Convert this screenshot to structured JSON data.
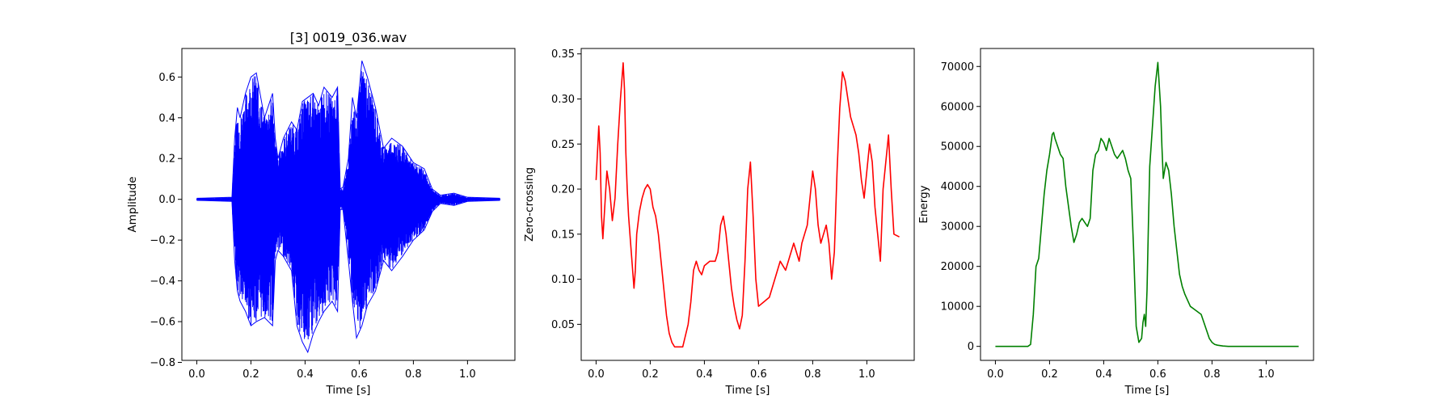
{
  "chart_data": [
    {
      "type": "line",
      "title": "[3] 0019_036.wav",
      "xlabel": "Time [s]",
      "ylabel": "Amplitude",
      "color": "#0000ff",
      "xlim": [
        -0.055,
        1.175
      ],
      "ylim": [
        -0.79,
        0.74
      ],
      "xticks": [
        0.0,
        0.2,
        0.4,
        0.6,
        0.8,
        1.0
      ],
      "xtick_labels": [
        "0.0",
        "0.2",
        "0.4",
        "0.6",
        "0.8",
        "1.0"
      ],
      "yticks": [
        -0.8,
        -0.6,
        -0.4,
        -0.2,
        0.0,
        0.2,
        0.4,
        0.6
      ],
      "ytick_labels": [
        "−0.8",
        "−0.6",
        "−0.4",
        "−0.2",
        "0.0",
        "0.2",
        "0.4",
        "0.6"
      ],
      "waveform_envelope": {
        "x": [
          0.0,
          0.13,
          0.14,
          0.15,
          0.16,
          0.18,
          0.2,
          0.22,
          0.25,
          0.28,
          0.29,
          0.3,
          0.32,
          0.35,
          0.37,
          0.39,
          0.41,
          0.43,
          0.45,
          0.47,
          0.5,
          0.52,
          0.53,
          0.54,
          0.56,
          0.575,
          0.59,
          0.61,
          0.63,
          0.66,
          0.69,
          0.72,
          0.76,
          0.8,
          0.84,
          0.87,
          0.9,
          0.95,
          1.0,
          1.12
        ],
        "upper": [
          0.005,
          0.01,
          0.3,
          0.45,
          0.4,
          0.52,
          0.6,
          0.62,
          0.4,
          0.52,
          0.3,
          0.2,
          0.3,
          0.38,
          0.34,
          0.48,
          0.5,
          0.52,
          0.46,
          0.55,
          0.5,
          0.55,
          0.05,
          0.06,
          0.2,
          0.5,
          0.4,
          0.68,
          0.6,
          0.45,
          0.25,
          0.3,
          0.26,
          0.18,
          0.15,
          0.05,
          0.02,
          0.03,
          0.01,
          0.005
        ],
        "lower": [
          -0.005,
          -0.01,
          -0.3,
          -0.45,
          -0.5,
          -0.55,
          -0.62,
          -0.6,
          -0.58,
          -0.62,
          -0.3,
          -0.25,
          -0.28,
          -0.35,
          -0.62,
          -0.7,
          -0.75,
          -0.66,
          -0.6,
          -0.55,
          -0.5,
          -0.55,
          -0.05,
          -0.05,
          -0.3,
          -0.5,
          -0.68,
          -0.62,
          -0.52,
          -0.45,
          -0.3,
          -0.35,
          -0.28,
          -0.2,
          -0.15,
          -0.06,
          -0.02,
          -0.03,
          -0.01,
          -0.005
        ]
      }
    },
    {
      "type": "line",
      "title": "",
      "xlabel": "Time [s]",
      "ylabel": "Zero-crossing",
      "color": "#ff0000",
      "xlim": [
        -0.055,
        1.175
      ],
      "ylim": [
        0.01,
        0.356
      ],
      "xticks": [
        0.0,
        0.2,
        0.4,
        0.6,
        0.8,
        1.0
      ],
      "xtick_labels": [
        "0.0",
        "0.2",
        "0.4",
        "0.6",
        "0.8",
        "1.0"
      ],
      "yticks": [
        0.05,
        0.1,
        0.15,
        0.2,
        0.25,
        0.3,
        0.35
      ],
      "ytick_labels": [
        "0.05",
        "0.10",
        "0.15",
        "0.20",
        "0.25",
        "0.30",
        "0.35"
      ],
      "series": [
        {
          "x": [
            0.0,
            0.01,
            0.015,
            0.02,
            0.025,
            0.03,
            0.04,
            0.05,
            0.06,
            0.07,
            0.08,
            0.09,
            0.1,
            0.105,
            0.11,
            0.115,
            0.12,
            0.13,
            0.14,
            0.145,
            0.15,
            0.16,
            0.17,
            0.18,
            0.19,
            0.2,
            0.21,
            0.22,
            0.23,
            0.24,
            0.25,
            0.26,
            0.27,
            0.28,
            0.29,
            0.3,
            0.32,
            0.34,
            0.35,
            0.36,
            0.37,
            0.38,
            0.39,
            0.4,
            0.42,
            0.44,
            0.45,
            0.46,
            0.47,
            0.48,
            0.49,
            0.5,
            0.51,
            0.52,
            0.53,
            0.54,
            0.55,
            0.56,
            0.57,
            0.58,
            0.59,
            0.6,
            0.62,
            0.64,
            0.66,
            0.68,
            0.7,
            0.72,
            0.73,
            0.74,
            0.75,
            0.76,
            0.77,
            0.78,
            0.79,
            0.8,
            0.81,
            0.82,
            0.83,
            0.84,
            0.85,
            0.86,
            0.87,
            0.88,
            0.89,
            0.9,
            0.91,
            0.92,
            0.93,
            0.94,
            0.95,
            0.96,
            0.97,
            0.98,
            0.99,
            1.0,
            1.01,
            1.02,
            1.03,
            1.04,
            1.05,
            1.06,
            1.07,
            1.08,
            1.09,
            1.1,
            1.12
          ],
          "y": [
            0.21,
            0.27,
            0.24,
            0.17,
            0.145,
            0.17,
            0.22,
            0.2,
            0.165,
            0.19,
            0.25,
            0.3,
            0.34,
            0.31,
            0.24,
            0.2,
            0.17,
            0.13,
            0.09,
            0.11,
            0.15,
            0.175,
            0.19,
            0.2,
            0.205,
            0.2,
            0.18,
            0.17,
            0.15,
            0.12,
            0.09,
            0.06,
            0.04,
            0.03,
            0.025,
            0.025,
            0.025,
            0.05,
            0.075,
            0.11,
            0.12,
            0.11,
            0.105,
            0.115,
            0.12,
            0.12,
            0.13,
            0.16,
            0.17,
            0.15,
            0.12,
            0.09,
            0.07,
            0.055,
            0.045,
            0.06,
            0.12,
            0.2,
            0.23,
            0.17,
            0.1,
            0.07,
            0.075,
            0.08,
            0.1,
            0.12,
            0.11,
            0.13,
            0.14,
            0.13,
            0.12,
            0.14,
            0.15,
            0.16,
            0.19,
            0.22,
            0.2,
            0.16,
            0.14,
            0.15,
            0.16,
            0.14,
            0.1,
            0.13,
            0.22,
            0.29,
            0.33,
            0.32,
            0.3,
            0.28,
            0.27,
            0.26,
            0.24,
            0.21,
            0.19,
            0.22,
            0.25,
            0.23,
            0.18,
            0.15,
            0.12,
            0.2,
            0.23,
            0.26,
            0.2,
            0.15,
            0.147
          ]
        }
      ]
    },
    {
      "type": "line",
      "title": "",
      "xlabel": "Time [s]",
      "ylabel": "Energy",
      "color": "#008000",
      "xlim": [
        -0.055,
        1.175
      ],
      "ylim": [
        -3500,
        74500
      ],
      "xticks": [
        0.0,
        0.2,
        0.4,
        0.6,
        0.8,
        1.0
      ],
      "xtick_labels": [
        "0.0",
        "0.2",
        "0.4",
        "0.6",
        "0.8",
        "1.0"
      ],
      "yticks": [
        0,
        10000,
        20000,
        30000,
        40000,
        50000,
        60000,
        70000
      ],
      "ytick_labels": [
        "0",
        "10000",
        "20000",
        "30000",
        "40000",
        "50000",
        "60000",
        "70000"
      ],
      "series": [
        {
          "x": [
            0.0,
            0.12,
            0.13,
            0.14,
            0.15,
            0.16,
            0.17,
            0.18,
            0.19,
            0.2,
            0.21,
            0.215,
            0.22,
            0.23,
            0.24,
            0.25,
            0.26,
            0.27,
            0.28,
            0.29,
            0.3,
            0.31,
            0.32,
            0.33,
            0.34,
            0.35,
            0.36,
            0.37,
            0.38,
            0.39,
            0.4,
            0.41,
            0.42,
            0.43,
            0.44,
            0.45,
            0.46,
            0.47,
            0.48,
            0.49,
            0.5,
            0.51,
            0.52,
            0.53,
            0.54,
            0.545,
            0.55,
            0.555,
            0.56,
            0.565,
            0.57,
            0.58,
            0.59,
            0.6,
            0.61,
            0.615,
            0.62,
            0.63,
            0.64,
            0.65,
            0.66,
            0.67,
            0.68,
            0.69,
            0.7,
            0.72,
            0.74,
            0.76,
            0.77,
            0.78,
            0.79,
            0.8,
            0.81,
            0.82,
            0.83,
            0.84,
            0.86,
            0.9,
            1.0,
            1.12
          ],
          "y": [
            0,
            0,
            500,
            8000,
            20000,
            22000,
            30000,
            38000,
            44000,
            48000,
            53000,
            53500,
            52000,
            50000,
            48000,
            47000,
            40000,
            35000,
            30000,
            26000,
            28000,
            31000,
            32000,
            31000,
            30000,
            32000,
            44000,
            48000,
            49000,
            52000,
            51000,
            49000,
            52000,
            50000,
            48000,
            47000,
            48000,
            49000,
            47000,
            44000,
            42000,
            25000,
            5000,
            1000,
            2000,
            6000,
            8000,
            5000,
            14000,
            30000,
            45000,
            55000,
            65000,
            71000,
            60000,
            50000,
            42000,
            46000,
            44000,
            38000,
            30000,
            24000,
            18000,
            15000,
            13000,
            10000,
            9000,
            8000,
            6000,
            4000,
            2000,
            1000,
            500,
            300,
            200,
            100,
            0,
            0,
            0,
            0
          ]
        }
      ]
    }
  ]
}
